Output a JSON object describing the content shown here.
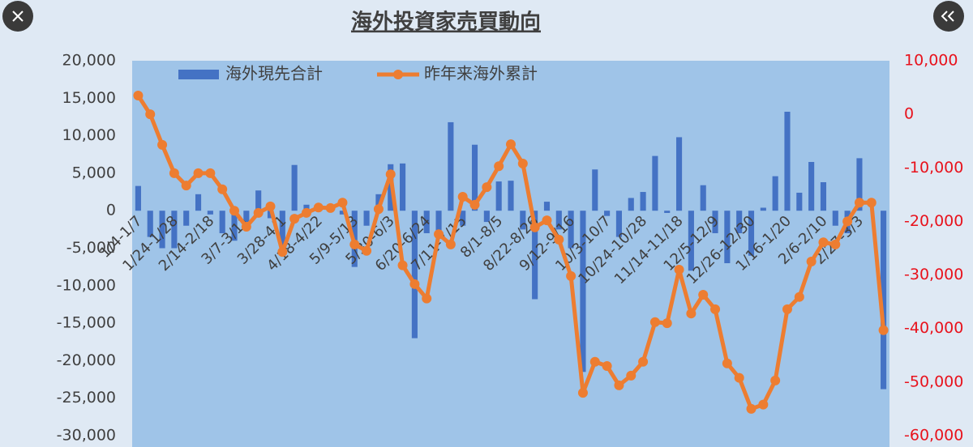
{
  "chart_data": {
    "type": "combo",
    "title": "海外投資家売買動向",
    "categories": [
      "1/4-1/7",
      null,
      null,
      "1/24-1/28",
      null,
      null,
      "2/14-2/18",
      null,
      null,
      "3/7-3/11",
      null,
      null,
      "3/28-4/1",
      null,
      null,
      "4/18-4/22",
      null,
      null,
      "5/9-5/13",
      null,
      null,
      "5/30-6/3",
      null,
      null,
      "6/20-6/24",
      null,
      null,
      "7/11-7/15",
      null,
      null,
      "8/1-8/5",
      null,
      null,
      "8/22-8/26",
      null,
      null,
      "9/12-9/16",
      null,
      null,
      "10/3-10/7",
      null,
      null,
      "10/24-10/28",
      null,
      null,
      "11/14-11/18",
      null,
      null,
      "12/5-12/9",
      null,
      null,
      "12/26-12/30",
      null,
      null,
      "1/16-1/20",
      null,
      null,
      "2/6-2/10",
      null,
      null,
      "2/27-3/3",
      null,
      null
    ],
    "series": [
      {
        "name": "海外現先合計",
        "type": "bar",
        "color": "#4472c4",
        "values": [
          3300,
          -3500,
          -5000,
          -5000,
          -2000,
          2200,
          -500,
          -3000,
          -4000,
          -1500,
          2700,
          -1000,
          -5500,
          6100,
          800,
          0,
          500,
          -500,
          -7500,
          -2000,
          2200,
          6200,
          6300,
          -17000,
          -3000,
          -2800,
          11800,
          -2000,
          8800,
          -1500,
          3900,
          4000,
          -2500,
          -11800,
          1200,
          -2500,
          -5000,
          -21500,
          5500,
          -700,
          -3500,
          1700,
          2500,
          7300,
          -300,
          9800,
          -8000,
          3400,
          -3000,
          -7000,
          -3000,
          -6000,
          400,
          4600,
          13200,
          2400,
          6500,
          3800,
          -2000,
          -3000,
          7000,
          0,
          -23800
        ]
      },
      {
        "name": "昨年来海外累計",
        "type": "line",
        "axis": "y2",
        "color": "#ed7d31",
        "values": [
          3500,
          0,
          -5700,
          -11000,
          -13300,
          -11000,
          -11000,
          -14000,
          -18000,
          -21000,
          -18400,
          -17200,
          -25700,
          -19500,
          -18400,
          -17400,
          -17500,
          -16500,
          -24300,
          -25500,
          -17700,
          -11200,
          -28200,
          -31700,
          -34400,
          -22400,
          -24300,
          -15400,
          -16900,
          -13600,
          -9700,
          -5600,
          -9200,
          -21100,
          -19800,
          -23400,
          -30200,
          -52000,
          -46200,
          -47000,
          -50600,
          -48800,
          -46200,
          -38800,
          -39000,
          -29000,
          -37200,
          -33700,
          -36400,
          -46500,
          -49200,
          -55000,
          -54200,
          -49700,
          -36400,
          -34100,
          -27500,
          -23900,
          -24300,
          -20000,
          -16500,
          -16500,
          -40300
        ]
      }
    ],
    "ylim": [
      -30000,
      20000
    ],
    "yticks": [
      {
        "value": -30000,
        "label": "-30,000"
      },
      {
        "value": -25000,
        "label": "-25,000"
      },
      {
        "value": -20000,
        "label": "-20,000"
      },
      {
        "value": -15000,
        "label": "-15,000"
      },
      {
        "value": -10000,
        "label": "-10,000"
      },
      {
        "value": -5000,
        "label": "-5,000"
      },
      0,
      {
        "value": 5000,
        "label": "5,000"
      },
      {
        "value": 10000,
        "label": "10,000"
      },
      {
        "value": 15000,
        "label": "15,000"
      },
      {
        "value": 20000,
        "label": "20,000"
      }
    ],
    "y2lim": [
      -60000,
      10000
    ],
    "y2ticks": [
      {
        "value": -60000,
        "label": "-60,000"
      },
      {
        "value": -50000,
        "label": "-50,000"
      },
      {
        "value": -40000,
        "label": "-40,000"
      },
      {
        "value": -30000,
        "label": "-30,000"
      },
      {
        "value": -20000,
        "label": "-20,000"
      },
      {
        "value": -10000,
        "label": "-10,000"
      },
      0,
      {
        "value": 10000,
        "label": "10,000"
      }
    ],
    "y2_color": "#e8121c"
  }
}
